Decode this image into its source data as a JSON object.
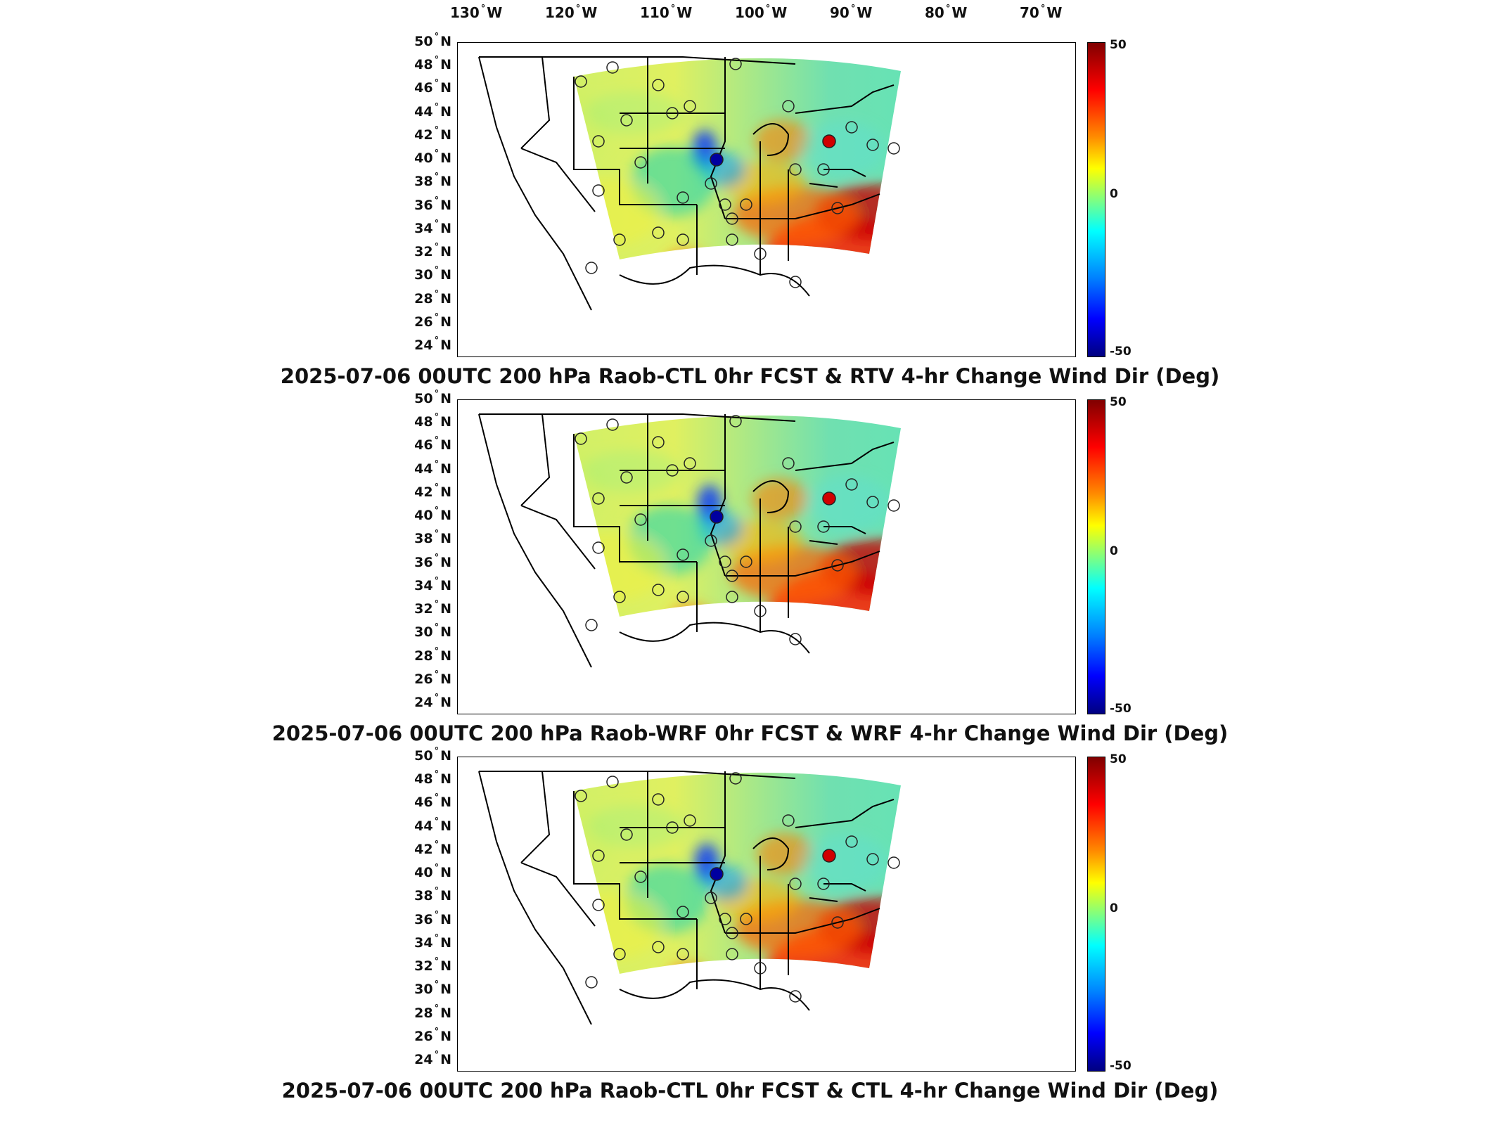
{
  "longitude_labels": [
    {
      "value": "130",
      "hem": "W"
    },
    {
      "value": "120",
      "hem": "W"
    },
    {
      "value": "110",
      "hem": "W"
    },
    {
      "value": "100",
      "hem": "W"
    },
    {
      "value": "90",
      "hem": "W"
    },
    {
      "value": "80",
      "hem": "W"
    },
    {
      "value": "70",
      "hem": "W"
    }
  ],
  "latitude_labels": [
    {
      "value": "50",
      "hem": "N"
    },
    {
      "value": "48",
      "hem": "N"
    },
    {
      "value": "46",
      "hem": "N"
    },
    {
      "value": "44",
      "hem": "N"
    },
    {
      "value": "42",
      "hem": "N"
    },
    {
      "value": "40",
      "hem": "N"
    },
    {
      "value": "38",
      "hem": "N"
    },
    {
      "value": "36",
      "hem": "N"
    },
    {
      "value": "34",
      "hem": "N"
    },
    {
      "value": "32",
      "hem": "N"
    },
    {
      "value": "30",
      "hem": "N"
    },
    {
      "value": "28",
      "hem": "N"
    },
    {
      "value": "26",
      "hem": "N"
    },
    {
      "value": "24",
      "hem": "N"
    }
  ],
  "colorbar": {
    "max_label": "50",
    "mid_label": "0",
    "min_label": "-50",
    "range": [
      -50,
      50
    ]
  },
  "panels": [
    {
      "caption": "2025-07-06 00UTC 200 hPa Raob-CTL 0hr FCST & RTV 4-hr Change Wind Dir (Deg)"
    },
    {
      "caption": "2025-07-06 00UTC 200 hPa Raob-WRF 0hr FCST & WRF 4-hr Change Wind Dir (Deg)"
    },
    {
      "caption": "2025-07-06 00UTC 200 hPa Raob-CTL 0hr FCST & CTL 4-hr Change Wind Dir (Deg)"
    }
  ],
  "colors": {
    "max": "#800000",
    "high": "#ff0000",
    "mid_high": "#ffff00",
    "zero": "#80ff80",
    "mid_low": "#00ffff",
    "low": "#0000ff",
    "min": "#000080"
  }
}
